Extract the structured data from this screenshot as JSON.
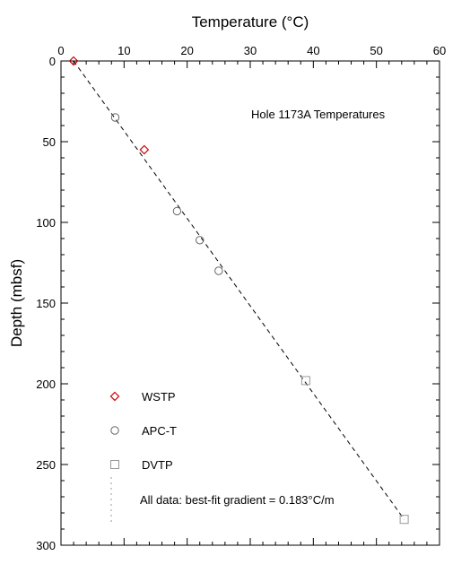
{
  "chart_data": {
    "type": "scatter",
    "xlabel": "Temperature (°C)",
    "ylabel": "Depth (mbsf)",
    "xlim": [
      0,
      60
    ],
    "ylim": [
      0,
      300
    ],
    "y_inverted": true,
    "x_axis_position": "top",
    "x_ticks": [
      0,
      10,
      20,
      30,
      40,
      50,
      60
    ],
    "y_ticks": [
      0,
      50,
      100,
      150,
      200,
      250,
      300
    ],
    "annotation": "Hole 1173A Temperatures",
    "grid": false,
    "legend": "bottom-left",
    "series": [
      {
        "name": "WSTP",
        "marker": "diamond",
        "color": "#cc0000",
        "points": [
          {
            "x": 2.0,
            "y": 0
          },
          {
            "x": 13.2,
            "y": 55
          }
        ]
      },
      {
        "name": "APC-T",
        "marker": "circle",
        "color": "#666666",
        "points": [
          {
            "x": 8.6,
            "y": 35
          },
          {
            "x": 18.4,
            "y": 93
          },
          {
            "x": 22.0,
            "y": 111
          },
          {
            "x": 25.0,
            "y": 130
          }
        ]
      },
      {
        "name": "DVTP",
        "marker": "square",
        "color": "#999999",
        "points": [
          {
            "x": 38.8,
            "y": 198
          },
          {
            "x": 54.4,
            "y": 284
          }
        ]
      }
    ],
    "fit_line": {
      "name": "All data: best-fit gradient = 0.183°C/m",
      "from": {
        "x": 2.0,
        "y": 0
      },
      "to": {
        "x": 54.4,
        "y": 284
      },
      "color": "#000000"
    }
  }
}
